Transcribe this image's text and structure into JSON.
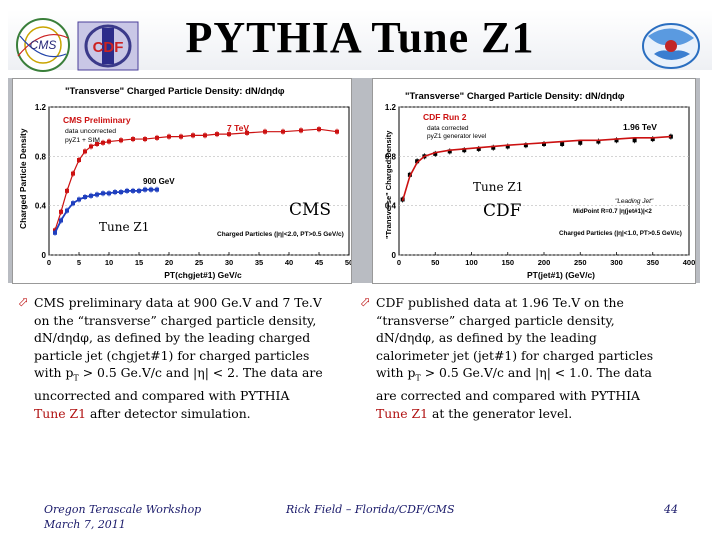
{
  "slide": {
    "title": "PYTHIA Tune Z1",
    "footer_left_1": "Oregon Terascale Workshop",
    "footer_left_2": "March 7, 2011",
    "footer_center": "Rick Field – Florida/CDF/CMS",
    "page_number": "44",
    "cms_logo_text": "CMS",
    "cdf_logo_text": "CDF",
    "colors": {
      "red": "#cc1111",
      "blue": "#1f3fbf",
      "black": "#000000"
    }
  },
  "bullets": {
    "left": {
      "l1_a": "CMS preliminary data at  900 Ge.V and 7 Te.V",
      "l2": "on the “transverse” charged particle density,",
      "l3_a": "dN/d",
      "l3_eta": "η",
      "l3_b": "d",
      "l3_phi": "φ",
      "l3_c": ", as defined by the leading charged",
      "l4": "particle jet (chgjet#1) for charged particles",
      "l5_a": "with p",
      "l5_sub": "T",
      "l5_b": " > 0.5 Ge.V/c and |",
      "l5_eta": "η",
      "l5_c": "| < 2.  The data are",
      "l6": "uncorrected and compared with PYTHIA",
      "l7_red": "Tune Z1",
      "l7_b": " after detector simulation."
    },
    "right": {
      "l1_a": "CDF published data at  1.96 Te.V on the",
      "l2": "“transverse” charged particle density,",
      "l3_a": "dN/d",
      "l3_eta": "η",
      "l3_b": "d",
      "l3_phi": "φ",
      "l3_c": ", as defined by the leading",
      "l4": "calorimeter jet (jet#1) for charged particles",
      "l5_a": "with p",
      "l5_sub": "T",
      "l5_b": " > 0.5 Ge.V/c and |",
      "l5_eta": "η",
      "l5_c": "| < 1.0.  The data",
      "l6": "are corrected and compared with PYTHIA",
      "l7_red": "Tune Z1",
      "l7_b": " at the generator level."
    }
  },
  "chart_data": [
    {
      "type": "scatter",
      "title": "\"Transverse\" Charged Particle Density: dN/dηdφ",
      "xlabel": "PT(chgjet#1) GeV/c",
      "ylabel": "Charged Particle Density",
      "xlim": [
        0,
        50
      ],
      "ylim": [
        0,
        1.2
      ],
      "x_ticks": [
        "0",
        "5",
        "10",
        "15",
        "20",
        "25",
        "30",
        "35",
        "40",
        "45",
        "50"
      ],
      "y_ticks": [
        "0",
        "0.4",
        "0.8",
        "1.2"
      ],
      "legend_title": "CMS Preliminary",
      "legend_lines": [
        "data uncorrected",
        "pyZ1 + SIM"
      ],
      "annotations": {
        "energy_high": "7 TeV",
        "energy_low": "900 GeV",
        "cuts": "Charged Particles (|η|<2.0, PT>0.5 GeV/c)",
        "overlay_label": "CMS",
        "tune_label": "Tune Z1"
      },
      "series": [
        {
          "name": "7 TeV",
          "color": "#cc1111",
          "x": [
            1,
            2,
            3,
            4,
            5,
            6,
            7,
            8,
            9,
            10,
            12,
            14,
            16,
            18,
            20,
            22,
            24,
            26,
            28,
            30,
            33,
            36,
            39,
            42,
            45,
            48
          ],
          "y": [
            0.2,
            0.35,
            0.52,
            0.66,
            0.77,
            0.84,
            0.88,
            0.9,
            0.91,
            0.92,
            0.93,
            0.94,
            0.94,
            0.95,
            0.96,
            0.96,
            0.97,
            0.97,
            0.98,
            0.98,
            0.99,
            1.0,
            1.0,
            1.01,
            1.02,
            1.0
          ]
        },
        {
          "name": "900 GeV",
          "color": "#1f3fbf",
          "x": [
            1,
            2,
            3,
            4,
            5,
            6,
            7,
            8,
            9,
            10,
            11,
            12,
            13,
            14,
            15,
            16,
            17,
            18
          ],
          "y": [
            0.18,
            0.28,
            0.36,
            0.42,
            0.45,
            0.47,
            0.48,
            0.49,
            0.5,
            0.5,
            0.51,
            0.51,
            0.52,
            0.52,
            0.52,
            0.53,
            0.53,
            0.53
          ]
        }
      ]
    },
    {
      "type": "line",
      "title": "\"Transverse\" Charged Particle Density: dN/dηdφ",
      "xlabel": "PT(jet#1) (GeV/c)",
      "ylabel": "\"Transverse\" Charged Density",
      "xlim": [
        0,
        400
      ],
      "ylim": [
        0,
        1.2
      ],
      "x_ticks": [
        "0",
        "50",
        "100",
        "150",
        "200",
        "250",
        "300",
        "350",
        "400"
      ],
      "y_ticks": [
        "0",
        "0.4",
        "0.8",
        "1.2"
      ],
      "legend_title": "CDF Run 2",
      "legend_lines": [
        "data corrected",
        "pyZ1 generator level"
      ],
      "annotations": {
        "energy": "1.96 TeV",
        "jet_label": "\"Leading Jet\"",
        "jet_def": "MidPoint R=0.7 |η(jet#1)|<2",
        "cuts": "Charged Particles (|η|<1.0, PT>0.5 GeV/c)",
        "overlay_label": "CDF",
        "tune_label": "Tune Z1"
      },
      "series": [
        {
          "name": "data corrected",
          "color": "#000000",
          "x": [
            5,
            15,
            25,
            35,
            50,
            70,
            90,
            110,
            130,
            150,
            175,
            200,
            225,
            250,
            275,
            300,
            325,
            350,
            375
          ],
          "y": [
            0.45,
            0.65,
            0.76,
            0.8,
            0.82,
            0.84,
            0.85,
            0.86,
            0.87,
            0.88,
            0.89,
            0.9,
            0.9,
            0.91,
            0.92,
            0.93,
            0.93,
            0.94,
            0.96
          ]
        },
        {
          "name": "pyZ1 generator level",
          "color": "#cc1111",
          "x": [
            5,
            15,
            25,
            35,
            50,
            70,
            90,
            110,
            130,
            150,
            175,
            200,
            225,
            250,
            275,
            300,
            325,
            350,
            375
          ],
          "y": [
            0.44,
            0.64,
            0.75,
            0.8,
            0.83,
            0.85,
            0.86,
            0.87,
            0.88,
            0.89,
            0.9,
            0.91,
            0.92,
            0.93,
            0.93,
            0.94,
            0.95,
            0.95,
            0.96
          ]
        }
      ]
    }
  ]
}
